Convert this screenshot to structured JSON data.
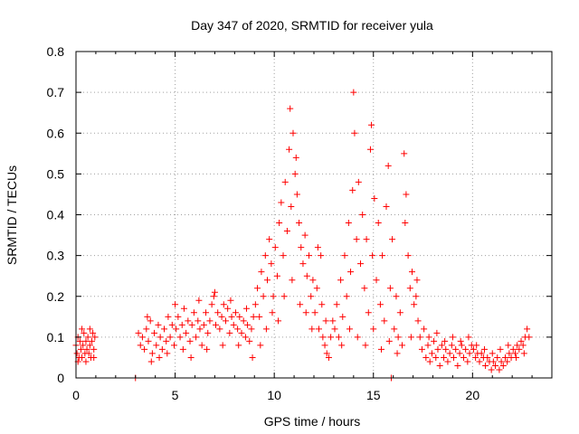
{
  "chart_data": {
    "type": "scatter",
    "title": "Day 347 of 2020, SRMTID for receiver yula",
    "xlabel": "GPS time / hours",
    "ylabel": "SRMTID / TECUs",
    "xlim": [
      0,
      24
    ],
    "ylim": [
      0,
      0.8
    ],
    "xticks": [
      0,
      5,
      10,
      15,
      20
    ],
    "yticks": [
      0,
      0.1,
      0.2,
      0.3,
      0.4,
      0.5,
      0.6,
      0.7,
      0.8
    ],
    "xtick_labels": [
      "0",
      "5",
      "10",
      "15",
      "20"
    ],
    "ytick_labels": [
      "0",
      "0.1",
      "0.2",
      "0.3",
      "0.4",
      "0.5",
      "0.6",
      "0.7",
      "0.8"
    ],
    "grid": true,
    "marker": "plus",
    "color": "#ff0000",
    "series": [
      {
        "name": "SRMTID",
        "points": [
          [
            0.0,
            0.08
          ],
          [
            0.05,
            0.06
          ],
          [
            0.1,
            0.1
          ],
          [
            0.15,
            0.05
          ],
          [
            0.2,
            0.09
          ],
          [
            0.25,
            0.07
          ],
          [
            0.3,
            0.05
          ],
          [
            0.35,
            0.08
          ],
          [
            0.4,
            0.11
          ],
          [
            0.45,
            0.06
          ],
          [
            0.5,
            0.09
          ],
          [
            0.55,
            0.07
          ],
          [
            0.6,
            0.1
          ],
          [
            0.65,
            0.06
          ],
          [
            0.7,
            0.08
          ],
          [
            0.75,
            0.05
          ],
          [
            0.8,
            0.09
          ],
          [
            0.85,
            0.11
          ],
          [
            0.9,
            0.07
          ],
          [
            0.95,
            0.1
          ],
          [
            0.1,
            0.04
          ],
          [
            0.3,
            0.12
          ],
          [
            0.5,
            0.04
          ],
          [
            0.7,
            0.12
          ],
          [
            0.9,
            0.05
          ],
          [
            3.0,
            0.0
          ],
          [
            3.15,
            0.11
          ],
          [
            3.25,
            0.08
          ],
          [
            3.35,
            0.1
          ],
          [
            3.45,
            0.07
          ],
          [
            3.55,
            0.12
          ],
          [
            3.65,
            0.09
          ],
          [
            3.75,
            0.14
          ],
          [
            3.85,
            0.06
          ],
          [
            3.95,
            0.11
          ],
          [
            4.05,
            0.08
          ],
          [
            4.15,
            0.13
          ],
          [
            4.25,
            0.1
          ],
          [
            4.35,
            0.07
          ],
          [
            4.45,
            0.12
          ],
          [
            4.55,
            0.09
          ],
          [
            4.65,
            0.15
          ],
          [
            4.75,
            0.1
          ],
          [
            4.85,
            0.13
          ],
          [
            4.95,
            0.08
          ],
          [
            5.05,
            0.12
          ],
          [
            5.15,
            0.15
          ],
          [
            5.25,
            0.1
          ],
          [
            5.35,
            0.13
          ],
          [
            5.45,
            0.17
          ],
          [
            5.55,
            0.11
          ],
          [
            5.65,
            0.14
          ],
          [
            5.75,
            0.09
          ],
          [
            5.85,
            0.13
          ],
          [
            5.95,
            0.16
          ],
          [
            6.05,
            0.1
          ],
          [
            6.15,
            0.14
          ],
          [
            6.25,
            0.12
          ],
          [
            6.35,
            0.08
          ],
          [
            6.45,
            0.13
          ],
          [
            6.55,
            0.16
          ],
          [
            6.65,
            0.11
          ],
          [
            6.75,
            0.14
          ],
          [
            6.85,
            0.18
          ],
          [
            6.95,
            0.2
          ],
          [
            7.05,
            0.13
          ],
          [
            7.15,
            0.16
          ],
          [
            7.25,
            0.12
          ],
          [
            7.35,
            0.15
          ],
          [
            7.45,
            0.18
          ],
          [
            7.55,
            0.14
          ],
          [
            7.65,
            0.17
          ],
          [
            7.75,
            0.11
          ],
          [
            7.85,
            0.15
          ],
          [
            7.95,
            0.13
          ],
          [
            8.05,
            0.16
          ],
          [
            8.15,
            0.12
          ],
          [
            8.25,
            0.15
          ],
          [
            8.35,
            0.11
          ],
          [
            8.45,
            0.14
          ],
          [
            8.55,
            0.1
          ],
          [
            8.65,
            0.13
          ],
          [
            8.75,
            0.09
          ],
          [
            8.85,
            0.12
          ],
          [
            8.95,
            0.15
          ],
          [
            3.6,
            0.15
          ],
          [
            3.8,
            0.04
          ],
          [
            4.2,
            0.05
          ],
          [
            4.6,
            0.06
          ],
          [
            5.0,
            0.18
          ],
          [
            5.4,
            0.07
          ],
          [
            5.8,
            0.05
          ],
          [
            6.2,
            0.19
          ],
          [
            6.6,
            0.07
          ],
          [
            7.0,
            0.21
          ],
          [
            7.4,
            0.08
          ],
          [
            7.8,
            0.19
          ],
          [
            8.2,
            0.08
          ],
          [
            8.6,
            0.17
          ],
          [
            8.9,
            0.05
          ],
          [
            9.05,
            0.18
          ],
          [
            9.15,
            0.22
          ],
          [
            9.25,
            0.15
          ],
          [
            9.35,
            0.26
          ],
          [
            9.45,
            0.2
          ],
          [
            9.55,
            0.3
          ],
          [
            9.65,
            0.24
          ],
          [
            9.75,
            0.34
          ],
          [
            9.85,
            0.28
          ],
          [
            9.95,
            0.2
          ],
          [
            10.05,
            0.32
          ],
          [
            10.15,
            0.25
          ],
          [
            10.25,
            0.38
          ],
          [
            10.35,
            0.43
          ],
          [
            10.45,
            0.3
          ],
          [
            10.55,
            0.48
          ],
          [
            10.65,
            0.36
          ],
          [
            10.75,
            0.56
          ],
          [
            10.8,
            0.66
          ],
          [
            10.85,
            0.42
          ],
          [
            10.95,
            0.6
          ],
          [
            11.05,
            0.5
          ],
          [
            11.15,
            0.45
          ],
          [
            11.25,
            0.38
          ],
          [
            11.35,
            0.32
          ],
          [
            11.45,
            0.28
          ],
          [
            11.55,
            0.35
          ],
          [
            11.65,
            0.25
          ],
          [
            11.75,
            0.3
          ],
          [
            11.85,
            0.2
          ],
          [
            11.95,
            0.24
          ],
          [
            12.05,
            0.16
          ],
          [
            12.15,
            0.22
          ],
          [
            12.25,
            0.12
          ],
          [
            12.35,
            0.3
          ],
          [
            12.45,
            0.1
          ],
          [
            12.55,
            0.08
          ],
          [
            12.65,
            0.06
          ],
          [
            12.75,
            0.05
          ],
          [
            12.85,
            0.1
          ],
          [
            12.95,
            0.14
          ],
          [
            9.3,
            0.08
          ],
          [
            9.6,
            0.12
          ],
          [
            9.9,
            0.16
          ],
          [
            10.2,
            0.14
          ],
          [
            10.5,
            0.2
          ],
          [
            10.9,
            0.24
          ],
          [
            11.1,
            0.54
          ],
          [
            11.3,
            0.18
          ],
          [
            11.6,
            0.16
          ],
          [
            11.9,
            0.12
          ],
          [
            12.2,
            0.32
          ],
          [
            12.4,
            0.18
          ],
          [
            12.6,
            0.14
          ],
          [
            13.05,
            0.12
          ],
          [
            13.15,
            0.18
          ],
          [
            13.25,
            0.1
          ],
          [
            13.35,
            0.24
          ],
          [
            13.45,
            0.15
          ],
          [
            13.55,
            0.3
          ],
          [
            13.65,
            0.2
          ],
          [
            13.75,
            0.38
          ],
          [
            13.85,
            0.26
          ],
          [
            13.95,
            0.46
          ],
          [
            14.0,
            0.7
          ],
          [
            14.05,
            0.6
          ],
          [
            14.15,
            0.34
          ],
          [
            14.25,
            0.48
          ],
          [
            14.35,
            0.28
          ],
          [
            14.45,
            0.4
          ],
          [
            14.55,
            0.22
          ],
          [
            14.65,
            0.34
          ],
          [
            14.75,
            0.16
          ],
          [
            14.85,
            0.56
          ],
          [
            14.9,
            0.62
          ],
          [
            14.95,
            0.3
          ],
          [
            15.05,
            0.44
          ],
          [
            15.15,
            0.24
          ],
          [
            15.25,
            0.38
          ],
          [
            15.35,
            0.18
          ],
          [
            15.45,
            0.3
          ],
          [
            15.55,
            0.14
          ],
          [
            15.65,
            0.42
          ],
          [
            15.75,
            0.52
          ],
          [
            15.85,
            0.22
          ],
          [
            15.95,
            0.34
          ],
          [
            16.05,
            0.12
          ],
          [
            16.15,
            0.2
          ],
          [
            16.25,
            0.1
          ],
          [
            16.35,
            0.16
          ],
          [
            16.45,
            0.08
          ],
          [
            16.55,
            0.55
          ],
          [
            16.65,
            0.45
          ],
          [
            16.75,
            0.3
          ],
          [
            16.85,
            0.22
          ],
          [
            16.95,
            0.26
          ],
          [
            17.05,
            0.18
          ],
          [
            17.15,
            0.2
          ],
          [
            17.25,
            0.14
          ],
          [
            13.4,
            0.08
          ],
          [
            13.8,
            0.12
          ],
          [
            14.2,
            0.1
          ],
          [
            14.6,
            0.08
          ],
          [
            15.0,
            0.12
          ],
          [
            15.4,
            0.07
          ],
          [
            15.8,
            0.09
          ],
          [
            16.2,
            0.06
          ],
          [
            16.6,
            0.38
          ],
          [
            16.9,
            0.1
          ],
          [
            17.2,
            0.24
          ],
          [
            15.9,
            0.0
          ],
          [
            17.35,
            0.1
          ],
          [
            17.45,
            0.07
          ],
          [
            17.55,
            0.12
          ],
          [
            17.65,
            0.05
          ],
          [
            17.75,
            0.08
          ],
          [
            17.85,
            0.04
          ],
          [
            17.95,
            0.06
          ],
          [
            18.05,
            0.09
          ],
          [
            18.15,
            0.05
          ],
          [
            18.25,
            0.07
          ],
          [
            18.35,
            0.03
          ],
          [
            18.45,
            0.08
          ],
          [
            18.55,
            0.05
          ],
          [
            18.65,
            0.07
          ],
          [
            18.75,
            0.04
          ],
          [
            18.85,
            0.06
          ],
          [
            18.95,
            0.08
          ],
          [
            19.05,
            0.05
          ],
          [
            19.15,
            0.07
          ],
          [
            19.25,
            0.03
          ],
          [
            19.35,
            0.06
          ],
          [
            19.45,
            0.08
          ],
          [
            19.55,
            0.05
          ],
          [
            19.65,
            0.07
          ],
          [
            19.75,
            0.04
          ],
          [
            19.85,
            0.06
          ],
          [
            19.95,
            0.08
          ],
          [
            20.05,
            0.07
          ],
          [
            20.15,
            0.05
          ],
          [
            20.25,
            0.06
          ],
          [
            20.35,
            0.04
          ],
          [
            20.45,
            0.06
          ],
          [
            20.55,
            0.05
          ],
          [
            20.65,
            0.03
          ],
          [
            20.75,
            0.05
          ],
          [
            20.85,
            0.04
          ],
          [
            20.95,
            0.02
          ],
          [
            21.05,
            0.04
          ],
          [
            21.15,
            0.03
          ],
          [
            21.25,
            0.05
          ],
          [
            21.35,
            0.02
          ],
          [
            21.45,
            0.04
          ],
          [
            21.55,
            0.03
          ],
          [
            21.65,
            0.05
          ],
          [
            21.75,
            0.04
          ],
          [
            21.85,
            0.06
          ],
          [
            21.95,
            0.05
          ],
          [
            22.05,
            0.07
          ],
          [
            22.15,
            0.06
          ],
          [
            22.25,
            0.08
          ],
          [
            22.35,
            0.07
          ],
          [
            22.45,
            0.09
          ],
          [
            22.55,
            0.08
          ],
          [
            22.65,
            0.1
          ],
          [
            22.75,
            0.12
          ],
          [
            22.85,
            0.1
          ],
          [
            17.8,
            0.1
          ],
          [
            18.2,
            0.11
          ],
          [
            18.6,
            0.09
          ],
          [
            19.0,
            0.1
          ],
          [
            19.4,
            0.09
          ],
          [
            19.8,
            0.1
          ],
          [
            20.2,
            0.08
          ],
          [
            20.6,
            0.07
          ],
          [
            21.0,
            0.06
          ],
          [
            21.4,
            0.07
          ],
          [
            21.8,
            0.08
          ],
          [
            22.2,
            0.05
          ],
          [
            22.6,
            0.06
          ]
        ]
      }
    ]
  }
}
